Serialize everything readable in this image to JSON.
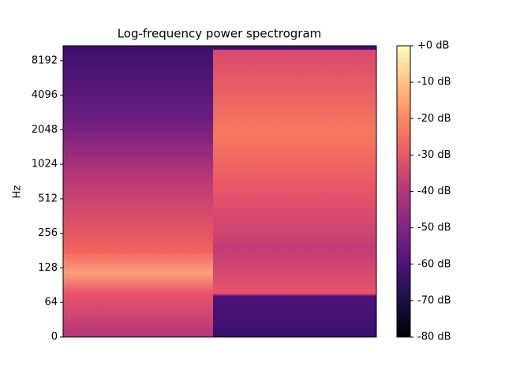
{
  "chart_data": {
    "type": "spectrogram",
    "title": "Log-frequency power spectrogram",
    "ylabel": "Hz",
    "yscale": "symlog",
    "linthresh": 64,
    "ylim": [
      0,
      11025
    ],
    "yticks": [
      0,
      64,
      128,
      256,
      512,
      1024,
      2048,
      4096,
      8192
    ],
    "cmap": "magma",
    "zlim": [
      -80,
      0
    ],
    "colorbar_ticks": [
      {
        "value": 0,
        "label": "+0 dB"
      },
      {
        "value": -10,
        "label": "-10 dB"
      },
      {
        "value": -20,
        "label": "-20 dB"
      },
      {
        "value": -30,
        "label": "-30 dB"
      },
      {
        "value": -40,
        "label": "-40 dB"
      },
      {
        "value": -50,
        "label": "-50 dB"
      },
      {
        "value": -60,
        "label": "-60 dB"
      },
      {
        "value": -70,
        "label": "-70 dB"
      },
      {
        "value": -80,
        "label": "-80 dB"
      }
    ]
  }
}
